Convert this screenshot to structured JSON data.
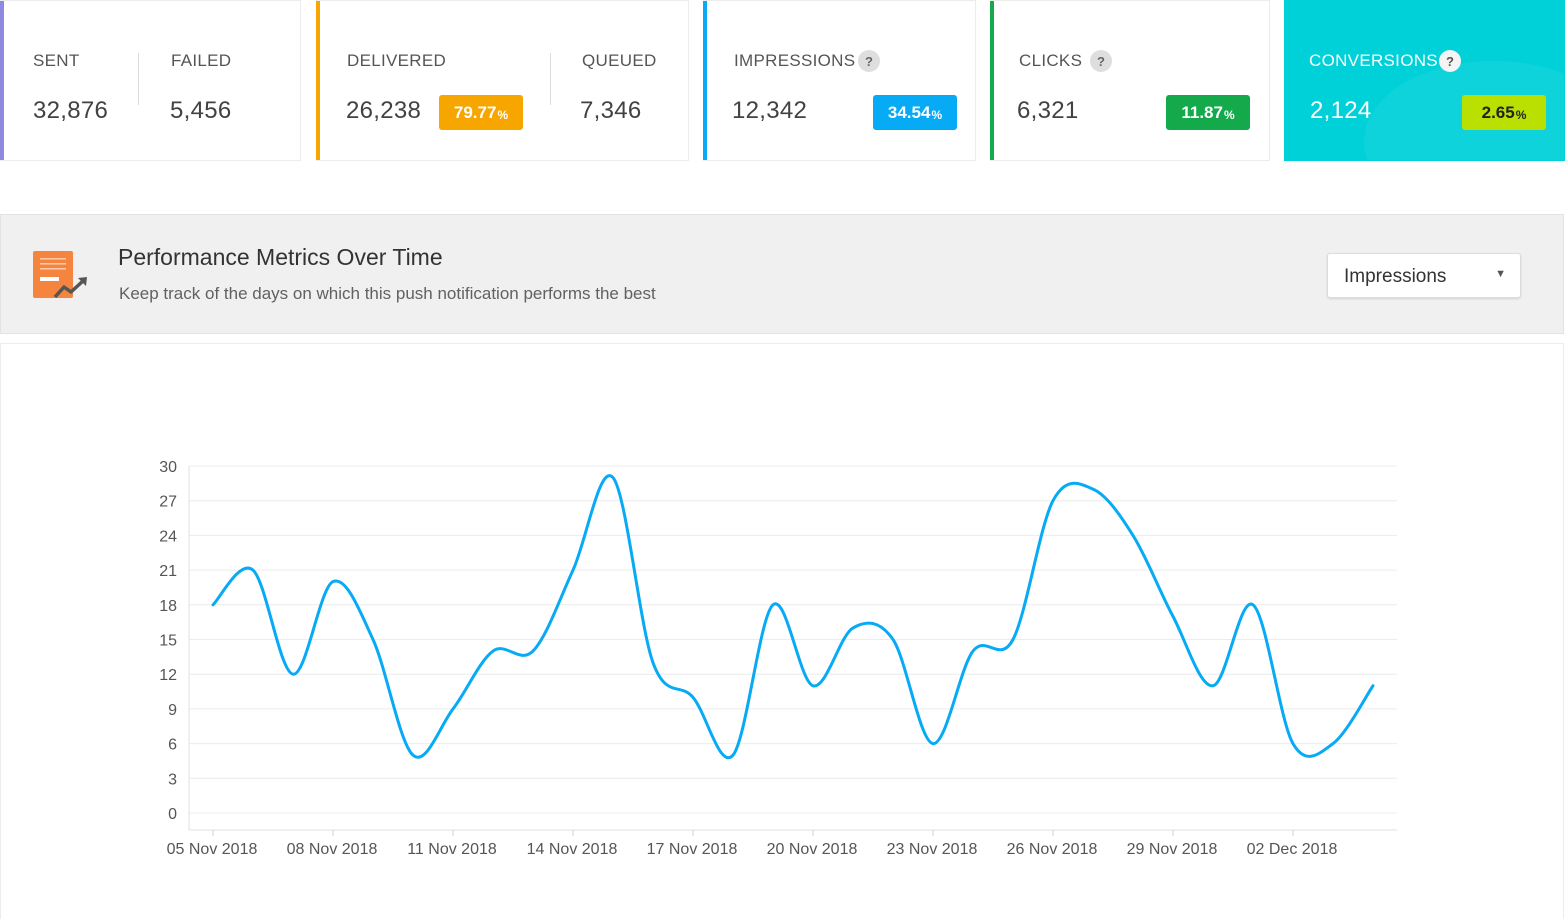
{
  "stats": {
    "sent": {
      "label": "SENT",
      "value": "32,876"
    },
    "failed": {
      "label": "FAILED",
      "value": "5,456"
    },
    "delivered": {
      "label": "DELIVERED",
      "value": "26,238",
      "pct": "79.77",
      "pct_sign": "%"
    },
    "queued": {
      "label": "QUEUED",
      "value": "7,346"
    },
    "impressions": {
      "label": "IMPRESSIONS",
      "value": "12,342",
      "pct": "34.54",
      "pct_sign": "%"
    },
    "clicks": {
      "label": "CLICKS",
      "value": "6,321",
      "pct": "11.87",
      "pct_sign": "%"
    },
    "conversions": {
      "label": "CONVERSIONS",
      "value": "2,124",
      "pct": "2.65",
      "pct_sign": "%"
    },
    "help_glyph": "?"
  },
  "colors": {
    "sent": "#8f8ae0",
    "delivered": "#f7a600",
    "impressions": "#06aaf5",
    "clicks": "#14a94b",
    "conversions": "#00d1d8",
    "conversions_badge": "#b9e000",
    "line": "#06aaf5"
  },
  "panel": {
    "title": "Performance Metrics Over Time",
    "subtitle": "Keep track of the days on which this push notification performs the best",
    "icon": "report-trend-icon",
    "metric_select": {
      "value": "Impressions",
      "caret": "▼"
    }
  },
  "chart_data": {
    "type": "line",
    "x": [
      "05 Nov 2018",
      "06 Nov 2018",
      "07 Nov 2018",
      "08 Nov 2018",
      "09 Nov 2018",
      "10 Nov 2018",
      "11 Nov 2018",
      "12 Nov 2018",
      "13 Nov 2018",
      "14 Nov 2018",
      "15 Nov 2018",
      "16 Nov 2018",
      "17 Nov 2018",
      "18 Nov 2018",
      "19 Nov 2018",
      "20 Nov 2018",
      "21 Nov 2018",
      "22 Nov 2018",
      "23 Nov 2018",
      "24 Nov 2018",
      "25 Nov 2018",
      "26 Nov 2018",
      "27 Nov 2018",
      "28 Nov 2018",
      "29 Nov 2018",
      "30 Nov 2018",
      "01 Dec 2018",
      "02 Dec 2018",
      "03 Dec 2018",
      "04 Dec 2018"
    ],
    "series": [
      {
        "values": [
          18,
          21,
          12,
          20,
          15,
          5,
          9,
          14,
          14,
          21,
          29,
          13,
          10,
          5,
          18,
          11,
          16,
          15,
          6,
          14,
          15,
          27,
          28,
          24,
          17,
          11,
          18,
          6,
          6,
          11
        ]
      }
    ],
    "x_ticks": [
      "05 Nov 2018",
      "08 Nov 2018",
      "11 Nov 2018",
      "14 Nov 2018",
      "17 Nov 2018",
      "20 Nov 2018",
      "23 Nov 2018",
      "26 Nov 2018",
      "29 Nov 2018",
      "02 Dec 2018"
    ],
    "y_ticks": [
      0,
      3,
      6,
      9,
      12,
      15,
      18,
      21,
      24,
      27,
      30
    ],
    "ylim": [
      0,
      30
    ],
    "xlabel": "",
    "ylabel": "",
    "title": "",
    "grid": true,
    "legend": "none"
  }
}
